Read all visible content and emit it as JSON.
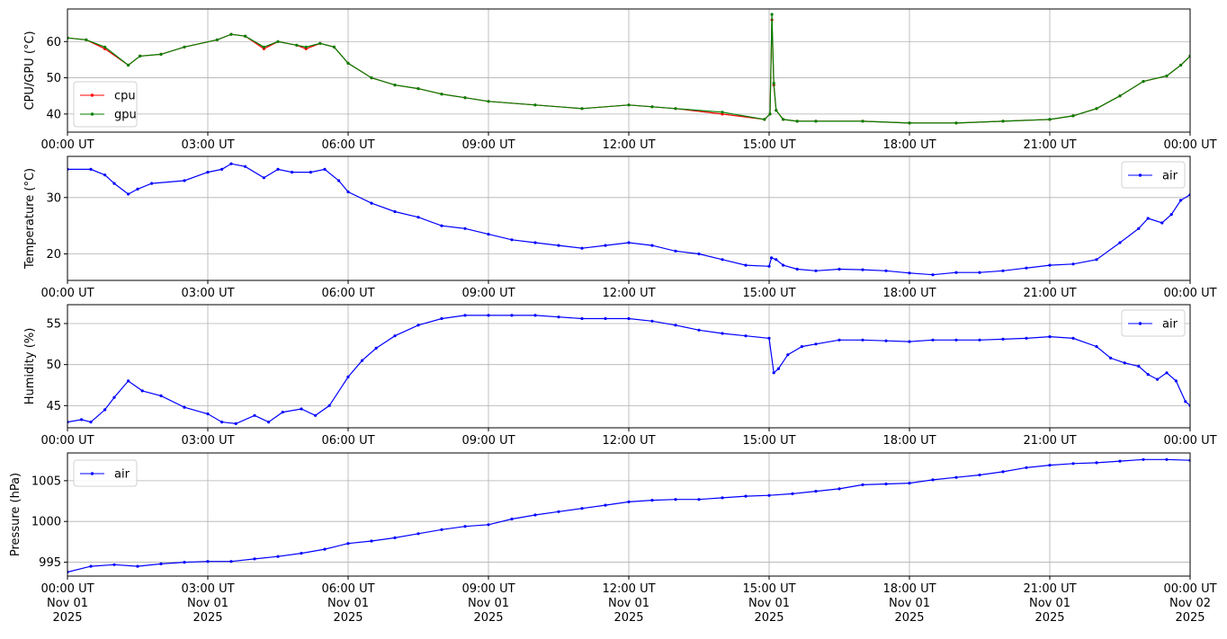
{
  "colors": {
    "cpu": "#ff0000",
    "gpu": "#008000",
    "air": "#0000ff",
    "grid": "#b0b0b0",
    "axis": "#000000"
  },
  "chart_data": [
    {
      "type": "line",
      "ylabel": "CPU/GPU (°C)",
      "ylim": [
        35,
        69
      ],
      "yticks": [
        40,
        50,
        60
      ],
      "xlim": [
        0,
        24
      ],
      "xticks": [
        0,
        3,
        6,
        9,
        12,
        15,
        18,
        21,
        24
      ],
      "xtick_labels": [
        "00:00 UT",
        "03:00 UT",
        "06:00 UT",
        "09:00 UT",
        "12:00 UT",
        "15:00 UT",
        "18:00 UT",
        "21:00 UT",
        "00:00 UT"
      ],
      "grid": true,
      "legend_position": "lower-left",
      "x_units": "hours since 00:00 UT, Nov 01 2025",
      "series": [
        {
          "name": "cpu",
          "color": "#ff0000",
          "x": [
            0,
            0.4,
            0.8,
            1.3,
            1.55,
            2.0,
            2.5,
            3.2,
            3.5,
            3.8,
            4.2,
            4.5,
            4.9,
            5.1,
            5.4,
            5.7,
            6.0,
            6.5,
            7.0,
            7.5,
            8.0,
            8.5,
            9.0,
            10.0,
            11.0,
            12.0,
            12.5,
            13.0,
            14.0,
            14.9,
            15.02,
            15.06,
            15.1,
            15.15,
            15.3,
            15.6,
            16.0,
            17.0,
            18.0,
            19.0,
            20.0,
            21.0,
            21.5,
            22.0,
            22.5,
            23.0,
            23.5,
            23.8,
            24.0
          ],
          "y": [
            61,
            60.5,
            58,
            53.5,
            56,
            56.5,
            58.5,
            60.5,
            62,
            61.5,
            58,
            60,
            59,
            58,
            59.5,
            58.5,
            54,
            50,
            48,
            47,
            45.5,
            44.5,
            43.5,
            42.5,
            41.5,
            42.5,
            42,
            41.5,
            40,
            38.5,
            40,
            66,
            48,
            41,
            38.5,
            38,
            38,
            38,
            37.5,
            37.5,
            38,
            38.5,
            39.5,
            41.5,
            45,
            49,
            50.5,
            53.5,
            56
          ]
        },
        {
          "name": "gpu",
          "color": "#008000",
          "x": [
            0,
            0.4,
            0.8,
            1.3,
            1.55,
            2.0,
            2.5,
            3.2,
            3.5,
            3.8,
            4.2,
            4.5,
            4.9,
            5.1,
            5.4,
            5.7,
            6.0,
            6.5,
            7.0,
            7.5,
            8.0,
            8.5,
            9.0,
            10.0,
            11.0,
            12.0,
            12.5,
            13.0,
            14.0,
            14.9,
            15.02,
            15.06,
            15.1,
            15.15,
            15.3,
            15.6,
            16.0,
            17.0,
            18.0,
            19.0,
            20.0,
            21.0,
            21.5,
            22.0,
            22.5,
            23.0,
            23.5,
            23.8,
            24.0
          ],
          "y": [
            61,
            60.5,
            58.5,
            53.5,
            56,
            56.5,
            58.5,
            60.5,
            62,
            61.5,
            58.5,
            60,
            59,
            58.5,
            59.5,
            58.5,
            54,
            50,
            48,
            47,
            45.5,
            44.5,
            43.5,
            42.5,
            41.5,
            42.5,
            42,
            41.5,
            40.5,
            38.5,
            40,
            67.5,
            48.5,
            41,
            38.5,
            38,
            38,
            38,
            37.5,
            37.5,
            38,
            38.5,
            39.5,
            41.5,
            45,
            49,
            50.5,
            53.5,
            56
          ]
        }
      ]
    },
    {
      "type": "line",
      "ylabel": "Temperature (°C)",
      "ylim": [
        15.3,
        37.3
      ],
      "yticks": [
        20,
        30
      ],
      "xlim": [
        0,
        24
      ],
      "xticks": [
        0,
        3,
        6,
        9,
        12,
        15,
        18,
        21,
        24
      ],
      "xtick_labels": [
        "00:00 UT",
        "03:00 UT",
        "06:00 UT",
        "09:00 UT",
        "12:00 UT",
        "15:00 UT",
        "18:00 UT",
        "21:00 UT",
        "00:00 UT"
      ],
      "grid": true,
      "legend_position": "upper-right",
      "x_units": "hours since 00:00 UT, Nov 01 2025",
      "series": [
        {
          "name": "air",
          "color": "#0000ff",
          "x": [
            0,
            0.5,
            0.8,
            1.0,
            1.3,
            1.5,
            1.8,
            2.5,
            3.0,
            3.3,
            3.5,
            3.8,
            4.2,
            4.5,
            4.8,
            5.2,
            5.5,
            5.8,
            6.0,
            6.5,
            7.0,
            7.5,
            8.0,
            8.5,
            9.0,
            9.5,
            10.0,
            10.5,
            11.0,
            11.5,
            12.0,
            12.5,
            13.0,
            13.5,
            14.0,
            14.5,
            15.0,
            15.05,
            15.15,
            15.3,
            15.6,
            16.0,
            16.5,
            17.0,
            17.5,
            18.0,
            18.5,
            19.0,
            19.5,
            20.0,
            20.5,
            21.0,
            21.5,
            22.0,
            22.5,
            22.9,
            23.1,
            23.4,
            23.6,
            23.8,
            24.0
          ],
          "y": [
            35,
            35,
            34,
            32.5,
            30.6,
            31.5,
            32.5,
            33,
            34.5,
            35,
            36,
            35.5,
            33.5,
            35,
            34.5,
            34.5,
            35,
            33,
            31,
            29,
            27.5,
            26.5,
            25,
            24.5,
            23.5,
            22.5,
            22,
            21.5,
            21,
            21.5,
            22,
            21.5,
            20.5,
            20,
            19,
            18,
            17.8,
            19.3,
            19,
            18,
            17.3,
            17,
            17.3,
            17.2,
            17,
            16.6,
            16.3,
            16.7,
            16.7,
            17,
            17.5,
            18,
            18.2,
            19,
            22,
            24.5,
            26.3,
            25.5,
            27,
            29.5,
            30.5
          ]
        }
      ]
    },
    {
      "type": "line",
      "ylabel": "Humidity (%)",
      "ylim": [
        42.3,
        57.3
      ],
      "yticks": [
        45,
        50,
        55
      ],
      "xlim": [
        0,
        24
      ],
      "xticks": [
        0,
        3,
        6,
        9,
        12,
        15,
        18,
        21,
        24
      ],
      "xtick_labels": [
        "00:00 UT",
        "03:00 UT",
        "06:00 UT",
        "09:00 UT",
        "12:00 UT",
        "15:00 UT",
        "18:00 UT",
        "21:00 UT",
        "00:00 UT"
      ],
      "grid": true,
      "legend_position": "upper-right",
      "x_units": "hours since 00:00 UT, Nov 01 2025",
      "series": [
        {
          "name": "air",
          "color": "#0000ff",
          "x": [
            0,
            0.3,
            0.5,
            0.8,
            1.0,
            1.3,
            1.6,
            2.0,
            2.5,
            3.0,
            3.3,
            3.6,
            4.0,
            4.3,
            4.6,
            5.0,
            5.3,
            5.6,
            6.0,
            6.3,
            6.6,
            7.0,
            7.5,
            8.0,
            8.5,
            9.0,
            9.5,
            10.0,
            10.5,
            11.0,
            11.5,
            12.0,
            12.5,
            13.0,
            13.5,
            14.0,
            14.5,
            15.0,
            15.1,
            15.2,
            15.4,
            15.7,
            16.0,
            16.5,
            17.0,
            17.5,
            18.0,
            18.5,
            19.0,
            19.5,
            20.0,
            20.5,
            21.0,
            21.5,
            22.0,
            22.3,
            22.6,
            22.9,
            23.1,
            23.3,
            23.5,
            23.7,
            23.9,
            24.0
          ],
          "y": [
            43,
            43.3,
            43,
            44.5,
            46,
            48,
            46.8,
            46.2,
            44.8,
            44,
            43,
            42.8,
            43.8,
            43,
            44.2,
            44.6,
            43.8,
            45,
            48.5,
            50.5,
            52,
            53.5,
            54.8,
            55.6,
            56,
            56,
            56,
            56,
            55.8,
            55.6,
            55.6,
            55.6,
            55.3,
            54.8,
            54.2,
            53.8,
            53.5,
            53.2,
            49,
            49.5,
            51.2,
            52.2,
            52.5,
            53,
            53,
            52.9,
            52.8,
            53,
            53,
            53,
            53.1,
            53.2,
            53.4,
            53.2,
            52.2,
            50.8,
            50.2,
            49.8,
            48.8,
            48.2,
            49,
            48,
            45.5,
            45
          ]
        }
      ]
    },
    {
      "type": "line",
      "ylabel": "Pressure (hPa)",
      "ylim": [
        993.3,
        1008.4
      ],
      "yticks": [
        995,
        1000,
        1005
      ],
      "xlim": [
        0,
        24
      ],
      "xticks": [
        0,
        3,
        6,
        9,
        12,
        15,
        18,
        21,
        24
      ],
      "xtick_labels": [
        "00:00 UT\nNov 01\n2025",
        "03:00 UT\nNov 01\n2025",
        "06:00 UT\nNov 01\n2025",
        "09:00 UT\nNov 01\n2025",
        "12:00 UT\nNov 01\n2025",
        "15:00 UT\nNov 01\n2025",
        "18:00 UT\nNov 01\n2025",
        "21:00 UT\nNov 01\n2025",
        "00:00 UT\nNov 02\n2025"
      ],
      "grid": true,
      "legend_position": "upper-left",
      "x_units": "hours since 00:00 UT, Nov 01 2025",
      "series": [
        {
          "name": "air",
          "color": "#0000ff",
          "x": [
            0,
            0.5,
            1.0,
            1.5,
            2.0,
            2.5,
            3.0,
            3.5,
            4.0,
            4.5,
            5.0,
            5.5,
            6.0,
            6.5,
            7.0,
            7.5,
            8.0,
            8.5,
            9.0,
            9.5,
            10.0,
            10.5,
            11.0,
            11.5,
            12.0,
            12.5,
            13.0,
            13.5,
            14.0,
            14.5,
            15.0,
            15.5,
            16.0,
            16.5,
            17.0,
            17.5,
            18.0,
            18.5,
            19.0,
            19.5,
            20.0,
            20.5,
            21.0,
            21.5,
            22.0,
            22.5,
            23.0,
            23.5,
            24.0
          ],
          "y": [
            993.8,
            994.5,
            994.7,
            994.5,
            994.8,
            995.0,
            995.1,
            995.1,
            995.4,
            995.7,
            996.1,
            996.6,
            997.3,
            997.6,
            998.0,
            998.5,
            999.0,
            999.4,
            999.6,
            1000.3,
            1000.8,
            1001.2,
            1001.6,
            1002.0,
            1002.4,
            1002.6,
            1002.7,
            1002.7,
            1002.9,
            1003.1,
            1003.2,
            1003.4,
            1003.7,
            1004.0,
            1004.5,
            1004.6,
            1004.7,
            1005.1,
            1005.4,
            1005.7,
            1006.1,
            1006.6,
            1006.9,
            1007.1,
            1007.2,
            1007.4,
            1007.6,
            1007.6,
            1007.5
          ]
        }
      ]
    }
  ]
}
